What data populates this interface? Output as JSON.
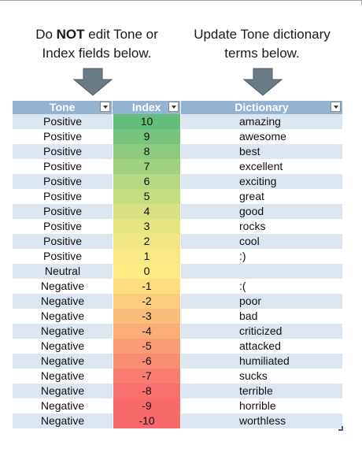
{
  "instructions": {
    "left_line1_pre": "Do ",
    "left_line1_bold": "NOT",
    "left_line1_post": " edit Tone or",
    "left_line2": "Index fields below.",
    "right_line1": "Update Tone dictionary",
    "right_line2": "terms below."
  },
  "table": {
    "headers": {
      "tone": "Tone",
      "index": "Index",
      "dictionary": "Dictionary"
    },
    "rows": [
      {
        "tone": "Positive",
        "index": "10",
        "dict": "amazing",
        "color": "#63be7b"
      },
      {
        "tone": "Positive",
        "index": "9",
        "dict": "awesome",
        "color": "#77c47d"
      },
      {
        "tone": "Positive",
        "index": "8",
        "dict": "best",
        "color": "#8ccb7e"
      },
      {
        "tone": "Positive",
        "index": "7",
        "dict": "excellent",
        "color": "#a0d17f"
      },
      {
        "tone": "Positive",
        "index": "6",
        "dict": "exciting",
        "color": "#b4d780"
      },
      {
        "tone": "Positive",
        "index": "5",
        "dict": "great",
        "color": "#c7dd81"
      },
      {
        "tone": "Positive",
        "index": "4",
        "dict": "good",
        "color": "#d8e282"
      },
      {
        "tone": "Positive",
        "index": "3",
        "dict": "rocks",
        "color": "#e6e583"
      },
      {
        "tone": "Positive",
        "index": "2",
        "dict": "cool",
        "color": "#f0e784"
      },
      {
        "tone": "Positive",
        "index": "1",
        "dict": ":)",
        "color": "#f8e985"
      },
      {
        "tone": "Neutral",
        "index": "0",
        "dict": "",
        "color": "#ffeb84"
      },
      {
        "tone": "Negative",
        "index": "-1",
        "dict": ":(",
        "color": "#fedd81"
      },
      {
        "tone": "Negative",
        "index": "-2",
        "dict": "poor",
        "color": "#fdcd7e"
      },
      {
        "tone": "Negative",
        "index": "-3",
        "dict": "bad",
        "color": "#fcbd7b"
      },
      {
        "tone": "Negative",
        "index": "-4",
        "dict": "criticized",
        "color": "#fbad78"
      },
      {
        "tone": "Negative",
        "index": "-5",
        "dict": "attacked",
        "color": "#fa9d75"
      },
      {
        "tone": "Negative",
        "index": "-6",
        "dict": "humiliated",
        "color": "#f98d72"
      },
      {
        "tone": "Negative",
        "index": "-7",
        "dict": "sucks",
        "color": "#f87e6f"
      },
      {
        "tone": "Negative",
        "index": "-8",
        "dict": "terrible",
        "color": "#f8706c"
      },
      {
        "tone": "Negative",
        "index": "-9",
        "dict": "horrible",
        "color": "#f8696b"
      },
      {
        "tone": "Negative",
        "index": "-10",
        "dict": "worthless",
        "color": "#f8696b"
      }
    ]
  },
  "colors": {
    "header_bg": "#94b3d3",
    "band": "#dce6f1",
    "arrow": "#6b7b86"
  }
}
